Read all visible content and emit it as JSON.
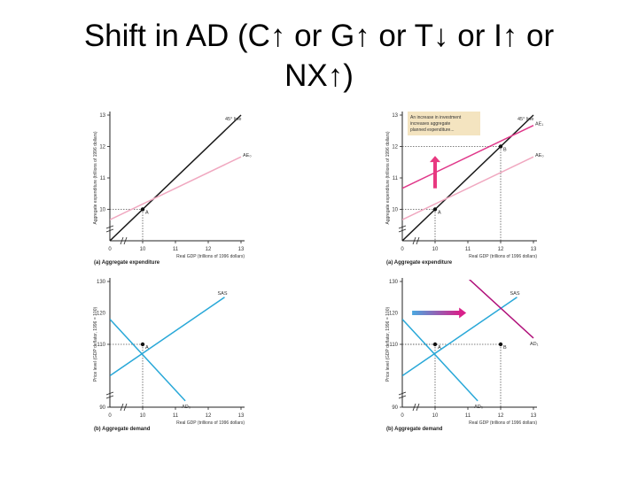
{
  "slide": {
    "title_line1": "Shift in AD (C↑ or G↑ or T↓ or I↑ or",
    "title_line2": "NX↑)"
  },
  "colors": {
    "line45": "#1a1a1a",
    "ae_initial": "#f0a8c0",
    "ae_new": "#e0388a",
    "as_line": "#29a8d8",
    "ad_initial": "#29a8d8",
    "ad_new": "#b0107a",
    "dotted": "#555555",
    "arrow_up": "#e83880",
    "arrow_right_start": "#4aa8e0",
    "arrow_right_end": "#d8208a",
    "annotation_bg": "#f4e4c0"
  },
  "annotation": {
    "line1": "An increase in investment",
    "line2": "increases aggregate",
    "line3": "planned expenditure..."
  },
  "chart_data": [
    {
      "type": "line",
      "panel": "top-left",
      "caption": "(a) Aggregate expenditure",
      "xlabel": "Real GDP (trillions of 1996 dollars)",
      "ylabel": "Aggregate expenditure (trillions of 1996 dollars)",
      "xlim": [
        9,
        13
      ],
      "ylim": [
        9,
        13
      ],
      "x_ticks": [
        "0",
        "10",
        "11",
        "12",
        "13"
      ],
      "y_ticks": [
        "10",
        "11",
        "12",
        "13"
      ],
      "series": [
        {
          "name": "45° line",
          "x": [
            9,
            13
          ],
          "y": [
            9,
            13
          ]
        },
        {
          "name": "AE₀",
          "x": [
            9,
            13
          ],
          "y": [
            9.67,
            11.67
          ]
        }
      ],
      "points": [
        {
          "label": "A",
          "x": 10,
          "y": 10
        }
      ]
    },
    {
      "type": "line",
      "panel": "top-right",
      "caption": "(a) Aggregate expenditure",
      "xlabel": "Real GDP (trillions of 1996 dollars)",
      "ylabel": "Aggregate expenditure (trillions of 1996 dollars)",
      "xlim": [
        9,
        13
      ],
      "ylim": [
        9,
        13
      ],
      "x_ticks": [
        "0",
        "10",
        "11",
        "12",
        "13"
      ],
      "y_ticks": [
        "10",
        "11",
        "12",
        "13"
      ],
      "series": [
        {
          "name": "45° line",
          "x": [
            9,
            13
          ],
          "y": [
            9,
            13
          ]
        },
        {
          "name": "AE₁",
          "x": [
            9,
            13
          ],
          "y": [
            10.67,
            12.67
          ]
        },
        {
          "name": "AE₀",
          "x": [
            9,
            13
          ],
          "y": [
            9.67,
            11.67
          ]
        }
      ],
      "points": [
        {
          "label": "A",
          "x": 10,
          "y": 10
        },
        {
          "label": "B",
          "x": 12,
          "y": 12
        }
      ]
    },
    {
      "type": "line",
      "panel": "bottom-left",
      "caption": "(b) Aggregate demand",
      "xlabel": "Real GDP (trillions of 1996 dollars)",
      "ylabel": "Price level (GDP deflator, 1996 = 100)",
      "xlim": [
        9,
        13
      ],
      "ylim": [
        90,
        130
      ],
      "x_ticks": [
        "0",
        "10",
        "11",
        "12",
        "13"
      ],
      "y_ticks": [
        "90",
        "110",
        "130"
      ],
      "y_ticks_partial": [
        "120"
      ],
      "series": [
        {
          "name": "SAS",
          "x": [
            9,
            12.5
          ],
          "y": [
            100,
            125
          ]
        },
        {
          "name": "AD₀",
          "x": [
            9,
            11.3
          ],
          "y": [
            118,
            92
          ]
        }
      ],
      "points": [
        {
          "label": "A",
          "x": 10,
          "y": 110
        }
      ]
    },
    {
      "type": "line",
      "panel": "bottom-right",
      "caption": "(b) Aggregate demand",
      "xlabel": "Real GDP (trillions of 1996 dollars)",
      "ylabel": "Price level (GDP deflator, 1996 = 100)",
      "xlim": [
        9,
        13
      ],
      "ylim": [
        90,
        130
      ],
      "x_ticks": [
        "0",
        "10",
        "11",
        "12",
        "13"
      ],
      "y_ticks": [
        "90",
        "110",
        "130"
      ],
      "y_ticks_partial": [
        "120"
      ],
      "series": [
        {
          "name": "SAS",
          "x": [
            9,
            12.5
          ],
          "y": [
            100,
            125
          ]
        },
        {
          "name": "AD₀",
          "x": [
            9,
            11.3
          ],
          "y": [
            118,
            92
          ]
        },
        {
          "name": "AD₁",
          "x": [
            10.8,
            13
          ],
          "y": [
            133,
            112
          ]
        }
      ],
      "points": [
        {
          "label": "A",
          "x": 10,
          "y": 110
        },
        {
          "label": "B",
          "x": 12,
          "y": 110
        }
      ]
    }
  ]
}
